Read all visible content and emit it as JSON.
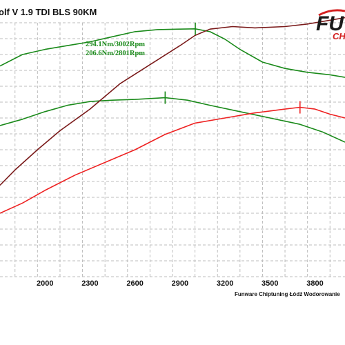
{
  "chart_data": {
    "type": "line",
    "title": "olf V 1.9 TDI BLS 90KM",
    "annotations": [
      "294.1Nm/3002Rpm",
      "206.6Nm/2801Rpm"
    ],
    "xlabel": "",
    "ylabel": "",
    "x_ticks": [
      2000,
      2300,
      2600,
      2900,
      3200,
      3500,
      3800
    ],
    "xlim": [
      1700,
      4000
    ],
    "ylim": [
      0,
      100
    ],
    "grid": true,
    "footer": "Funware Chiptuning Łódź Wodorowanie",
    "logo": {
      "big": "FU",
      "small": "CH"
    },
    "series": [
      {
        "color": "#1a8a1a",
        "x": [
          1700,
          1850,
          2000,
          2150,
          2300,
          2450,
          2600,
          2750,
          2900,
          3002,
          3100,
          3200,
          3300,
          3450,
          3600,
          3750,
          3900,
          4000
        ],
        "y": [
          83,
          87.5,
          89.5,
          91,
          92.5,
          94.5,
          96.5,
          97.3,
          97.5,
          97.6,
          96.5,
          93.5,
          89.5,
          84.5,
          82,
          80.5,
          79.5,
          78.5
        ]
      },
      {
        "color": "#1a8a1a",
        "x": [
          1700,
          1850,
          2000,
          2150,
          2300,
          2450,
          2600,
          2801,
          2950,
          3100,
          3300,
          3500,
          3700,
          3850,
          4000
        ],
        "y": [
          59.5,
          62,
          65,
          67.5,
          69,
          69.5,
          69.8,
          70.5,
          69.5,
          67.5,
          65,
          62.5,
          60,
          57,
          53
        ]
      },
      {
        "color": "#7a1a1a",
        "x": [
          1700,
          1800,
          1950,
          2100,
          2300,
          2500,
          2700,
          2900,
          3000,
          3100,
          3250,
          3400,
          3600,
          3750,
          3900,
          4000
        ],
        "y": [
          36,
          42,
          50,
          57.5,
          66,
          76,
          83.5,
          91,
          95,
          97.5,
          98.5,
          98,
          98.5,
          99.5,
          101,
          102
        ]
      },
      {
        "color": "#ee2222",
        "x": [
          1700,
          1850,
          2000,
          2200,
          2400,
          2600,
          2800,
          3000,
          3200,
          3400,
          3600,
          3700,
          3800,
          3900,
          4000
        ],
        "y": [
          25,
          29,
          34,
          40,
          45,
          50,
          56,
          60.5,
          62.5,
          64.5,
          66,
          66.7,
          66,
          64,
          62.5
        ]
      }
    ],
    "markers": [
      {
        "series": 0,
        "x": 3002,
        "y": 97.6,
        "color": "#1a8a1a"
      },
      {
        "series": 1,
        "x": 2801,
        "y": 70.5,
        "color": "#1a8a1a"
      },
      {
        "series": 3,
        "x": 3700,
        "y": 66.7,
        "color": "#ee2222"
      }
    ]
  }
}
